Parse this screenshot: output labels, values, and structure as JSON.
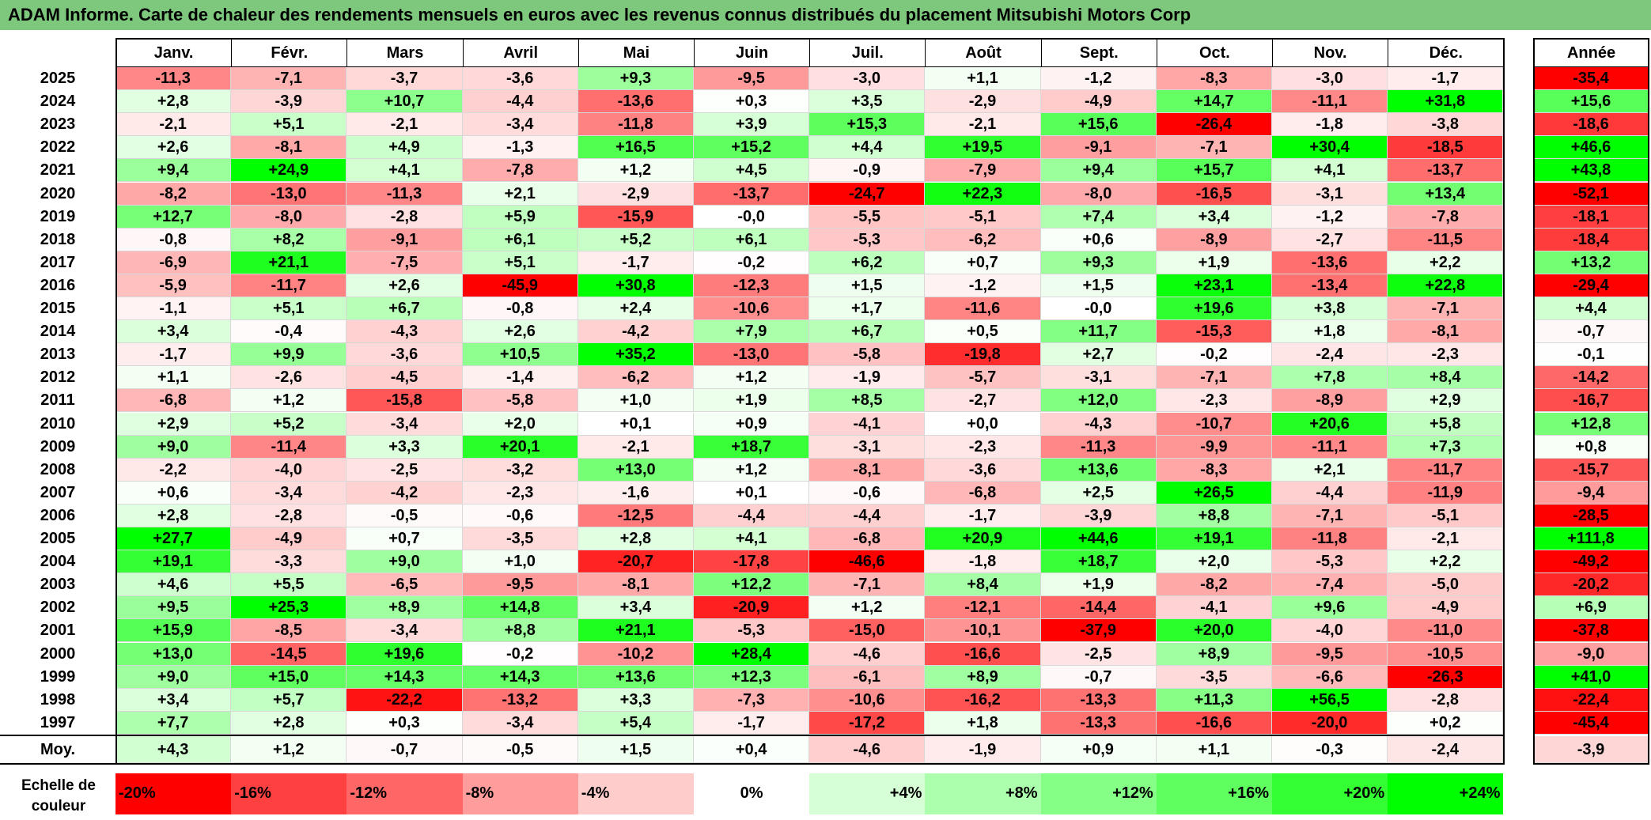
{
  "title": "ADAM Informe. Carte de chaleur des rendements mensuels en euros avec les revenus connus distribués du placement Mitsubishi Motors Corp",
  "chart_data": {
    "type": "heatmap",
    "title": "ADAM Informe. Carte de chaleur des rendements mensuels en euros avec les revenus connus distribués du placement Mitsubishi Motors Corp",
    "columns": [
      "Janv.",
      "Févr.",
      "Mars",
      "Avril",
      "Mai",
      "Juin",
      "Juil.",
      "Août",
      "Sept.",
      "Oct.",
      "Nov.",
      "Déc."
    ],
    "annual_header": "Année",
    "rows": [
      {
        "year": "2025",
        "values": [
          "-11,3",
          "-7,1",
          "-3,7",
          "-3,6",
          "+9,3",
          "-9,5",
          "-3,0",
          "+1,1",
          "-1,2",
          "-8,3",
          "-3,0",
          "-1,7"
        ],
        "annual": "-35,4"
      },
      {
        "year": "2024",
        "values": [
          "+2,8",
          "-3,9",
          "+10,7",
          "-4,4",
          "-13,6",
          "+0,3",
          "+3,5",
          "-2,9",
          "-4,9",
          "+14,7",
          "-11,1",
          "+31,8"
        ],
        "annual": "+15,6"
      },
      {
        "year": "2023",
        "values": [
          "-2,1",
          "+5,1",
          "-2,1",
          "-3,4",
          "-11,8",
          "+3,9",
          "+15,3",
          "-2,1",
          "+15,6",
          "-26,4",
          "-1,8",
          "-3,8"
        ],
        "annual": "-18,6"
      },
      {
        "year": "2022",
        "values": [
          "+2,6",
          "-8,1",
          "+4,9",
          "-1,3",
          "+16,5",
          "+15,2",
          "+4,4",
          "+19,5",
          "-9,1",
          "-7,1",
          "+30,4",
          "-18,5"
        ],
        "annual": "+46,6"
      },
      {
        "year": "2021",
        "values": [
          "+9,4",
          "+24,9",
          "+4,1",
          "-7,8",
          "+1,2",
          "+4,5",
          "-0,9",
          "-7,9",
          "+9,4",
          "+15,7",
          "+4,1",
          "-13,7"
        ],
        "annual": "+43,8"
      },
      {
        "year": "2020",
        "values": [
          "-8,2",
          "-13,0",
          "-11,3",
          "+2,1",
          "-2,9",
          "-13,7",
          "-24,7",
          "+22,3",
          "-8,0",
          "-16,5",
          "-3,1",
          "+13,4"
        ],
        "annual": "-52,1"
      },
      {
        "year": "2019",
        "values": [
          "+12,7",
          "-8,0",
          "-2,8",
          "+5,9",
          "-15,9",
          "-0,0",
          "-5,5",
          "-5,1",
          "+7,4",
          "+3,4",
          "-1,2",
          "-7,8"
        ],
        "annual": "-18,1"
      },
      {
        "year": "2018",
        "values": [
          "-0,8",
          "+8,2",
          "-9,1",
          "+6,1",
          "+5,2",
          "+6,1",
          "-5,3",
          "-6,2",
          "+0,6",
          "-8,9",
          "-2,7",
          "-11,5"
        ],
        "annual": "-18,4"
      },
      {
        "year": "2017",
        "values": [
          "-6,9",
          "+21,1",
          "-7,5",
          "+5,1",
          "-1,7",
          "-0,2",
          "+6,2",
          "+0,7",
          "+9,3",
          "+1,9",
          "-13,6",
          "+2,2"
        ],
        "annual": "+13,2"
      },
      {
        "year": "2016",
        "values": [
          "-5,9",
          "-11,7",
          "+2,6",
          "-45,9",
          "+30,8",
          "-12,3",
          "+1,5",
          "-1,2",
          "+1,5",
          "+23,1",
          "-13,4",
          "+22,8"
        ],
        "annual": "-29,4"
      },
      {
        "year": "2015",
        "values": [
          "-1,1",
          "+5,1",
          "+6,7",
          "-0,8",
          "+2,4",
          "-10,6",
          "+1,7",
          "-11,6",
          "-0,0",
          "+19,6",
          "+3,8",
          "-7,1"
        ],
        "annual": "+4,4"
      },
      {
        "year": "2014",
        "values": [
          "+3,4",
          "-0,4",
          "-4,3",
          "+2,6",
          "-4,2",
          "+7,9",
          "+6,7",
          "+0,5",
          "+11,7",
          "-15,3",
          "+1,8",
          "-8,1"
        ],
        "annual": "-0,7"
      },
      {
        "year": "2013",
        "values": [
          "-1,7",
          "+9,9",
          "-3,6",
          "+10,5",
          "+35,2",
          "-13,0",
          "-5,8",
          "-19,8",
          "+2,7",
          "-0,2",
          "-2,4",
          "-2,3"
        ],
        "annual": "-0,1"
      },
      {
        "year": "2012",
        "values": [
          "+1,1",
          "-2,6",
          "-4,5",
          "-1,4",
          "-6,2",
          "+1,2",
          "-1,9",
          "-5,7",
          "-3,1",
          "-7,1",
          "+7,8",
          "+8,4"
        ],
        "annual": "-14,2"
      },
      {
        "year": "2011",
        "values": [
          "-6,8",
          "+1,2",
          "-15,8",
          "-5,8",
          "+1,0",
          "+1,9",
          "+8,5",
          "-2,7",
          "+12,0",
          "-2,3",
          "-8,9",
          "+2,9"
        ],
        "annual": "-16,7"
      },
      {
        "year": "2010",
        "values": [
          "+2,9",
          "+5,2",
          "-3,4",
          "+2,0",
          "+0,1",
          "+0,9",
          "-4,1",
          "+0,0",
          "-4,3",
          "-10,7",
          "+20,6",
          "+5,8"
        ],
        "annual": "+12,8"
      },
      {
        "year": "2009",
        "values": [
          "+9,0",
          "-11,4",
          "+3,3",
          "+20,1",
          "-2,1",
          "+18,7",
          "-3,1",
          "-2,3",
          "-11,3",
          "-9,9",
          "-11,1",
          "+7,3"
        ],
        "annual": "+0,8"
      },
      {
        "year": "2008",
        "values": [
          "-2,2",
          "-4,0",
          "-2,5",
          "-3,2",
          "+13,0",
          "+1,2",
          "-8,1",
          "-3,6",
          "+13,6",
          "-8,3",
          "+2,1",
          "-11,7"
        ],
        "annual": "-15,7"
      },
      {
        "year": "2007",
        "values": [
          "+0,6",
          "-3,4",
          "-4,2",
          "-2,3",
          "-1,6",
          "+0,1",
          "-0,6",
          "-6,8",
          "+2,5",
          "+26,5",
          "-4,4",
          "-11,9"
        ],
        "annual": "-9,4"
      },
      {
        "year": "2006",
        "values": [
          "+2,8",
          "-2,8",
          "-0,5",
          "-0,6",
          "-12,5",
          "-4,4",
          "-4,4",
          "-1,7",
          "-3,9",
          "+8,8",
          "-7,1",
          "-5,1"
        ],
        "annual": "-28,5"
      },
      {
        "year": "2005",
        "values": [
          "+27,7",
          "-4,9",
          "+0,7",
          "-3,5",
          "+2,8",
          "+4,1",
          "-6,8",
          "+20,9",
          "+44,6",
          "+19,1",
          "-11,8",
          "-2,1"
        ],
        "annual": "+111,8"
      },
      {
        "year": "2004",
        "values": [
          "+19,1",
          "-3,3",
          "+9,0",
          "+1,0",
          "-20,7",
          "-17,8",
          "-46,6",
          "-1,8",
          "+18,7",
          "+2,0",
          "-5,3",
          "+2,2"
        ],
        "annual": "-49,2"
      },
      {
        "year": "2003",
        "values": [
          "+4,6",
          "+5,5",
          "-6,5",
          "-9,5",
          "-8,1",
          "+12,2",
          "-7,1",
          "+8,4",
          "+1,9",
          "-8,2",
          "-7,4",
          "-5,0"
        ],
        "annual": "-20,2"
      },
      {
        "year": "2002",
        "values": [
          "+9,5",
          "+25,3",
          "+8,9",
          "+14,8",
          "+3,4",
          "-20,9",
          "+1,2",
          "-12,1",
          "-14,4",
          "-4,1",
          "+9,6",
          "-4,9"
        ],
        "annual": "+6,9"
      },
      {
        "year": "2001",
        "values": [
          "+15,9",
          "-8,5",
          "-3,4",
          "+8,8",
          "+21,1",
          "-5,3",
          "-15,0",
          "-10,1",
          "-37,9",
          "+20,0",
          "-4,0",
          "-11,0"
        ],
        "annual": "-37,8"
      },
      {
        "year": "2000",
        "values": [
          "+13,0",
          "-14,5",
          "+19,6",
          "-0,2",
          "-10,2",
          "+28,4",
          "-4,6",
          "-16,6",
          "-2,5",
          "+8,9",
          "-9,5",
          "-10,5"
        ],
        "annual": "-9,0"
      },
      {
        "year": "1999",
        "values": [
          "+9,0",
          "+15,0",
          "+14,3",
          "+14,3",
          "+13,6",
          "+12,3",
          "-6,1",
          "+8,9",
          "-0,7",
          "-3,5",
          "-6,6",
          "-26,3"
        ],
        "annual": "+41,0"
      },
      {
        "year": "1998",
        "values": [
          "+3,4",
          "+5,7",
          "-22,2",
          "-13,2",
          "+3,3",
          "-7,3",
          "-10,6",
          "-16,2",
          "-13,3",
          "+11,3",
          "+56,5",
          "-2,8"
        ],
        "annual": "-22,4"
      },
      {
        "year": "1997",
        "values": [
          "+7,7",
          "+2,8",
          "+0,3",
          "-3,4",
          "+5,4",
          "-1,7",
          "-17,2",
          "+1,8",
          "-13,3",
          "-16,6",
          "-20,0",
          "+0,2"
        ],
        "annual": "-45,4"
      }
    ],
    "average_row": {
      "label": "Moy.",
      "values": [
        "+4,3",
        "+1,2",
        "-0,7",
        "-0,5",
        "+1,5",
        "+0,4",
        "-4,6",
        "-1,9",
        "+0,9",
        "+1,1",
        "-0,3",
        "-2,4"
      ],
      "annual": "-3,9"
    },
    "legend": {
      "label": "Echelle de couleur",
      "items": [
        "-20%",
        "-16%",
        "-12%",
        "-8%",
        "-4%",
        "0%",
        "+4%",
        "+8%",
        "+12%",
        "+16%",
        "+20%",
        "+24%"
      ]
    },
    "colors": {
      "scale": [
        "#ff0000",
        "#ff4040",
        "#ff6666",
        "#ff9c9c",
        "#ffcccc",
        "#ffffff",
        "#d6ffd6",
        "#acffac",
        "#85ff85",
        "#5eff5e",
        "#33ff33",
        "#00ff00"
      ],
      "header_bar": "#7ec87e"
    },
    "color_scale_range": [
      -24,
      24
    ]
  }
}
